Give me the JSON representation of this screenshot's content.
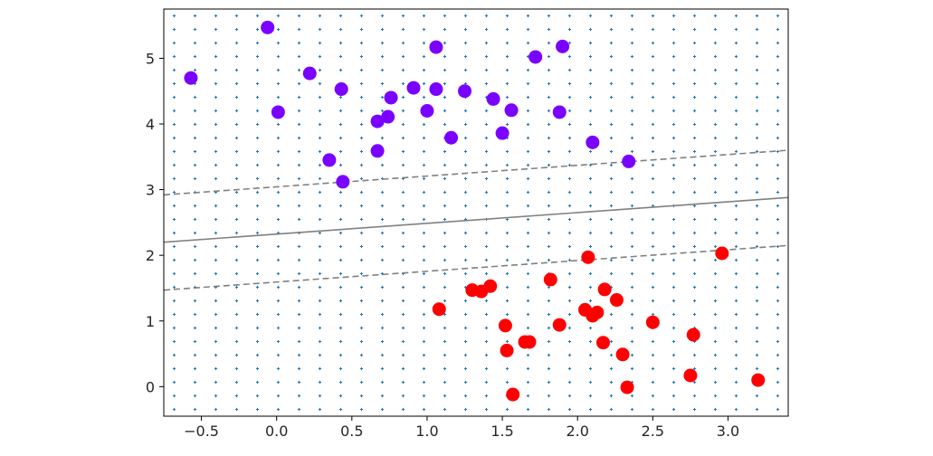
{
  "chart_data": {
    "type": "scatter",
    "title": "",
    "xlabel": "",
    "ylabel": "",
    "xlim": [
      -0.75,
      3.4
    ],
    "ylim": [
      -0.45,
      5.75
    ],
    "xticks": [
      -0.5,
      0.0,
      0.5,
      1.0,
      1.5,
      2.0,
      2.5,
      3.0
    ],
    "xtick_labels": [
      "−0.5",
      "0.0",
      "0.5",
      "1.0",
      "1.5",
      "2.0",
      "2.5",
      "3.0"
    ],
    "yticks": [
      0,
      1,
      2,
      3,
      4,
      5
    ],
    "ytick_labels": [
      "0",
      "1",
      "2",
      "3",
      "4",
      "5"
    ],
    "grid": false,
    "legend": "none",
    "series": [
      {
        "class": 0,
        "color": "#7a00ff",
        "points": [
          [
            -0.57,
            4.7
          ],
          [
            -0.06,
            5.47
          ],
          [
            0.01,
            4.18
          ],
          [
            0.22,
            4.77
          ],
          [
            0.35,
            3.45
          ],
          [
            0.43,
            4.53
          ],
          [
            0.44,
            3.12
          ],
          [
            0.67,
            3.59
          ],
          [
            0.67,
            4.04
          ],
          [
            0.74,
            4.11
          ],
          [
            0.76,
            4.4
          ],
          [
            0.91,
            4.55
          ],
          [
            1.0,
            4.2
          ],
          [
            1.06,
            4.53
          ],
          [
            1.06,
            5.17
          ],
          [
            1.16,
            3.79
          ],
          [
            1.25,
            4.5
          ],
          [
            1.44,
            4.38
          ],
          [
            1.5,
            3.86
          ],
          [
            1.56,
            4.21
          ],
          [
            1.72,
            5.02
          ],
          [
            1.88,
            4.18
          ],
          [
            1.9,
            5.18
          ],
          [
            2.1,
            3.72
          ],
          [
            2.34,
            3.43
          ]
        ]
      },
      {
        "class": 1,
        "color": "#ff0000",
        "points": [
          [
            1.08,
            1.18
          ],
          [
            1.3,
            1.47
          ],
          [
            1.36,
            1.45
          ],
          [
            1.42,
            1.53
          ],
          [
            1.52,
            0.93
          ],
          [
            1.53,
            0.55
          ],
          [
            1.57,
            -0.12
          ],
          [
            1.65,
            0.68
          ],
          [
            1.68,
            0.68
          ],
          [
            1.82,
            1.63
          ],
          [
            1.88,
            0.94
          ],
          [
            2.05,
            1.17
          ],
          [
            2.07,
            1.97
          ],
          [
            2.1,
            1.08
          ],
          [
            2.13,
            1.13
          ],
          [
            2.17,
            0.67
          ],
          [
            2.18,
            1.48
          ],
          [
            2.26,
            1.32
          ],
          [
            2.3,
            0.49
          ],
          [
            2.33,
            -0.01
          ],
          [
            2.5,
            0.98
          ],
          [
            2.75,
            0.17
          ],
          [
            2.77,
            0.79
          ],
          [
            2.96,
            2.03
          ],
          [
            3.2,
            0.1
          ]
        ]
      }
    ],
    "decision_boundary": {
      "line_color": "#808080",
      "lines": [
        {
          "style": "dashed",
          "level": -1,
          "x": [
            -0.75,
            3.4
          ],
          "y": [
            1.47,
            2.15
          ]
        },
        {
          "style": "solid",
          "level": 0,
          "x": [
            -0.75,
            3.4
          ],
          "y": [
            2.2,
            2.88
          ]
        },
        {
          "style": "dashed",
          "level": 1,
          "x": [
            -0.75,
            3.4
          ],
          "y": [
            2.92,
            3.6
          ]
        }
      ]
    },
    "background_grid_points": {
      "color": "#1f77b4",
      "marker": "+",
      "nx": 30,
      "ny": 30
    }
  }
}
